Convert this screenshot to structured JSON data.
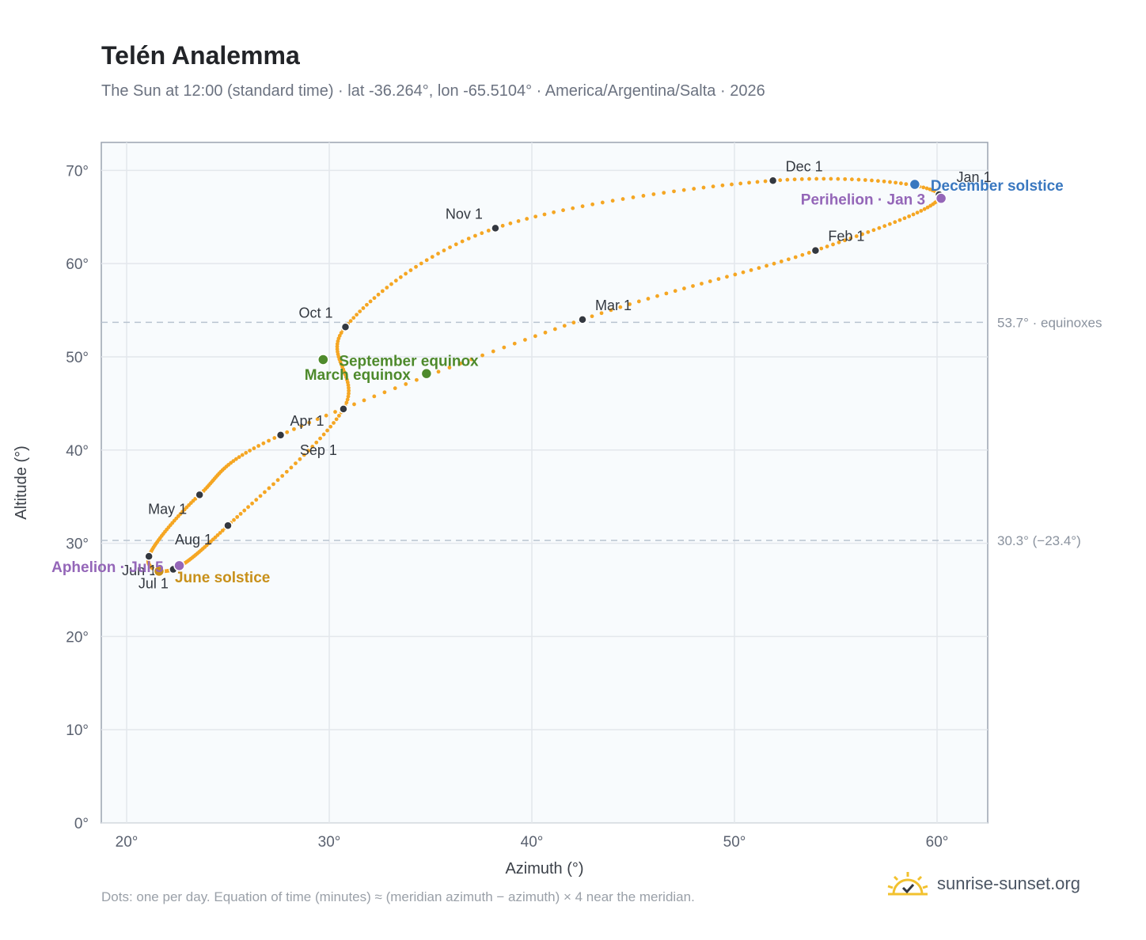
{
  "header": {
    "title": "Telén Analemma",
    "subtitle": "The Sun at 12:00 (standard time) · lat -36.264°, lon -65.5104° · America/Argentina/Salta · 2026"
  },
  "footer": {
    "note": "Dots: one per day. Equation of time (minutes) ≈ (meridian azimuth − azimuth) × 4 near the meridian.",
    "brand": "sunrise-sunset.org",
    "brand_icon": "sun-icon"
  },
  "colors": {
    "curve": "#f5a623",
    "month_marker": "#333840",
    "solstice_june": "#c8901a",
    "solstice_december": "#3a78c0",
    "equinox": "#4e8a2c",
    "apsis": "#9466b8",
    "plot_background": "#f8fbfd",
    "grid": "#e3e7ec",
    "reference_line": "#b8c4d0"
  },
  "chart_data": {
    "type": "scatter",
    "xlabel": "Azimuth (°)",
    "ylabel": "Altitude (°)",
    "xlim": [
      18.75,
      62.5
    ],
    "ylim": [
      0,
      73
    ],
    "xticks": [
      20,
      30,
      40,
      50,
      60
    ],
    "yticks": [
      0,
      10,
      20,
      30,
      40,
      50,
      60,
      70
    ],
    "x_tick_labels": [
      "20°",
      "30°",
      "40°",
      "50°",
      "60°"
    ],
    "y_tick_labels": [
      "0°",
      "10°",
      "20°",
      "30°",
      "40°",
      "50°",
      "60°",
      "70°"
    ],
    "grid": true,
    "reference_lines": [
      {
        "y": 53.7,
        "label": "53.7° · equinoxes"
      },
      {
        "y": 30.3,
        "label": "30.3° (−23.4°)"
      }
    ],
    "months": [
      {
        "label": "Jan 1",
        "x": 60.1,
        "y": 67.4
      },
      {
        "label": "Feb 1",
        "x": 54.0,
        "y": 61.4
      },
      {
        "label": "Mar 1",
        "x": 42.5,
        "y": 54.0
      },
      {
        "label": "Apr 1",
        "x": 27.6,
        "y": 41.6
      },
      {
        "label": "May 1",
        "x": 23.6,
        "y": 35.2
      },
      {
        "label": "Jun 1",
        "x": 21.1,
        "y": 28.6
      },
      {
        "label": "Jul 1",
        "x": 22.3,
        "y": 27.2
      },
      {
        "label": "Aug 1",
        "x": 25.0,
        "y": 31.9
      },
      {
        "label": "Sep 1",
        "x": 30.7,
        "y": 44.4
      },
      {
        "label": "Oct 1",
        "x": 30.8,
        "y": 53.2
      },
      {
        "label": "Nov 1",
        "x": 38.2,
        "y": 63.8
      },
      {
        "label": "Dec 1",
        "x": 51.9,
        "y": 68.9
      }
    ],
    "events": [
      {
        "label": "December solstice",
        "x": 58.9,
        "y": 68.5,
        "kind": "solstice_december"
      },
      {
        "label": "Perihelion · Jan 3",
        "x": 60.2,
        "y": 67.0,
        "kind": "apsis"
      },
      {
        "label": "September equinox",
        "x": 29.7,
        "y": 49.7,
        "kind": "equinox"
      },
      {
        "label": "March equinox",
        "x": 34.8,
        "y": 48.2,
        "kind": "equinox"
      },
      {
        "label": "June solstice",
        "x": 21.6,
        "y": 27.0,
        "kind": "solstice_june"
      },
      {
        "label": "Aphelion · Jul 5",
        "x": 22.6,
        "y": 27.6,
        "kind": "apsis"
      }
    ]
  }
}
